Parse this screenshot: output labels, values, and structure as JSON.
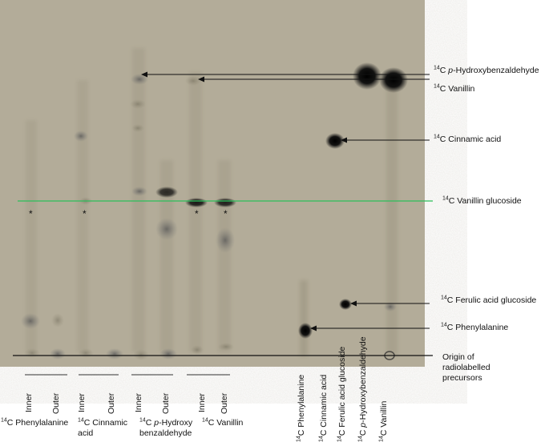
{
  "right_labels": {
    "hydroxybenzaldehyde": {
      "sup": "14",
      "pre": "C ",
      "italic": "p",
      "post": "-Hydroxybenzaldehyde"
    },
    "vanillin": {
      "sup": "14",
      "pre": "C Vanillin"
    },
    "cinnamic_acid": {
      "sup": "14",
      "pre": "C Cinnamic acid"
    },
    "vanillin_glucoside": {
      "sup": "14",
      "pre": "C Vanillin glucoside"
    },
    "ferulic_glucoside": {
      "sup": "14",
      "pre": "C Ferulic acid glucoside"
    },
    "phenylalanine": {
      "sup": "14",
      "pre": "C Phenylalanine"
    },
    "origin_line1": "Origin of",
    "origin_line2": "radiolabelled",
    "origin_line3": "precursors"
  },
  "lane_labels": {
    "inner": "Inner",
    "outer": "Outer"
  },
  "group_labels": {
    "phenylalanine": {
      "sup": "14",
      "pre": "C Phenylalanine"
    },
    "cinnamic": {
      "sup": "14",
      "pre": "C Cinnamic",
      "line2": "acid"
    },
    "hydroxy": {
      "sup": "14",
      "pre": "C ",
      "italic": "p",
      "post": "-Hydroxy",
      "line2": "benzaldehyde"
    },
    "vanillin": {
      "sup": "14",
      "pre": "C Vanillin"
    }
  },
  "standard_labels": {
    "phenylalanine": {
      "sup": "14",
      "pre": "C Phenylalanine"
    },
    "cinnamic": {
      "sup": "14",
      "pre": "C Cinnamic acid"
    },
    "ferulic": {
      "sup": "14",
      "pre": "C Ferulic acid glucoside"
    },
    "hydroxy": {
      "sup": "14",
      "pre": "C ",
      "italic": "p",
      "post": "-Hydroxybenzaldehyde"
    },
    "vanillin": {
      "sup": "14",
      "pre": "C Vanillin"
    }
  },
  "asterisk": "*",
  "colors": {
    "background": "#b3ac98",
    "glucoside_line": "#2bbf5a",
    "spot": "#111111"
  }
}
